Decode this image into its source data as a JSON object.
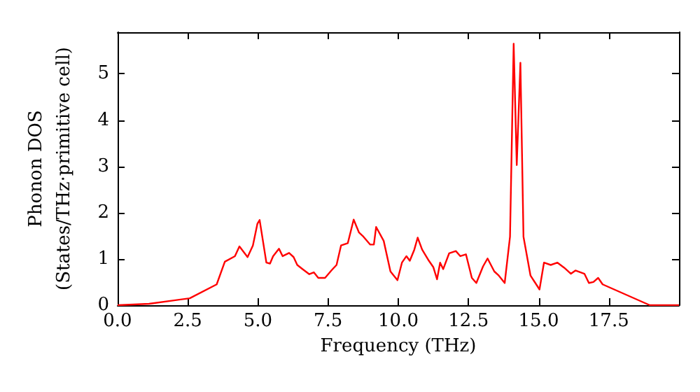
{
  "chart_data": {
    "type": "line",
    "xlabel": "Frequency (THz)",
    "ylabel": "Phonon DOS\n(States/THz·primitive cell)",
    "x": [
      0,
      1.12,
      2.57,
      3.53,
      3.82,
      4.18,
      4.34,
      4.63,
      4.82,
      4.98,
      5.06,
      5.3,
      5.43,
      5.54,
      5.75,
      5.88,
      6.11,
      6.27,
      6.4,
      6.59,
      6.83,
      6.99,
      7.15,
      7.39,
      7.63,
      7.8,
      7.96,
      8.2,
      8.41,
      8.6,
      8.76,
      9.0,
      9.13,
      9.21,
      9.48,
      9.72,
      9.97,
      10.13,
      10.29,
      10.41,
      10.57,
      10.69,
      10.85,
      11.09,
      11.25,
      11.38,
      11.49,
      11.6,
      11.81,
      12.05,
      12.21,
      12.41,
      12.62,
      12.78,
      13.02,
      13.18,
      13.42,
      13.58,
      13.79,
      13.98,
      14.11,
      14.22,
      14.35,
      14.46,
      14.71,
      15.03,
      15.19,
      15.43,
      15.67,
      15.91,
      16.15,
      16.31,
      16.63,
      16.79,
      16.95,
      17.12,
      17.28,
      18.96,
      20.0
    ],
    "series": [
      {
        "color": "#ff0000",
        "values": [
          0,
          0.03,
          0.15,
          0.45,
          0.94,
          1.06,
          1.27,
          1.04,
          1.29,
          1.76,
          1.84,
          0.92,
          0.9,
          1.06,
          1.22,
          1.06,
          1.13,
          1.04,
          0.87,
          0.78,
          0.67,
          0.71,
          0.59,
          0.59,
          0.76,
          0.87,
          1.29,
          1.34,
          1.85,
          1.57,
          1.48,
          1.31,
          1.31,
          1.69,
          1.39,
          0.73,
          0.54,
          0.92,
          1.06,
          0.96,
          1.2,
          1.46,
          1.2,
          0.96,
          0.82,
          0.56,
          0.92,
          0.78,
          1.12,
          1.17,
          1.06,
          1.1,
          0.59,
          0.48,
          0.84,
          1.01,
          0.73,
          0.64,
          0.48,
          1.48,
          5.65,
          3.03,
          5.24,
          1.48,
          0.64,
          0.34,
          0.92,
          0.87,
          0.92,
          0.81,
          0.68,
          0.75,
          0.68,
          0.48,
          0.5,
          0.59,
          0.45,
          0,
          0
        ]
      }
    ],
    "xlim": [
      0,
      20
    ],
    "xticks": [
      {
        "value": 0,
        "label": "0.0"
      },
      {
        "value": 2.5,
        "label": "2.5"
      },
      {
        "value": 5,
        "label": "5.0"
      },
      {
        "value": 7.5,
        "label": "7.5"
      },
      {
        "value": 10,
        "label": "10.0"
      },
      {
        "value": 12.5,
        "label": "12.5"
      },
      {
        "value": 15,
        "label": "15.0"
      },
      {
        "value": 17.5,
        "label": "17.5"
      }
    ],
    "ylim": [
      0,
      5.9
    ],
    "yticks": [
      0,
      1,
      2,
      3,
      4,
      5
    ],
    "grid": false,
    "marker": "none",
    "line_style": "solid"
  }
}
